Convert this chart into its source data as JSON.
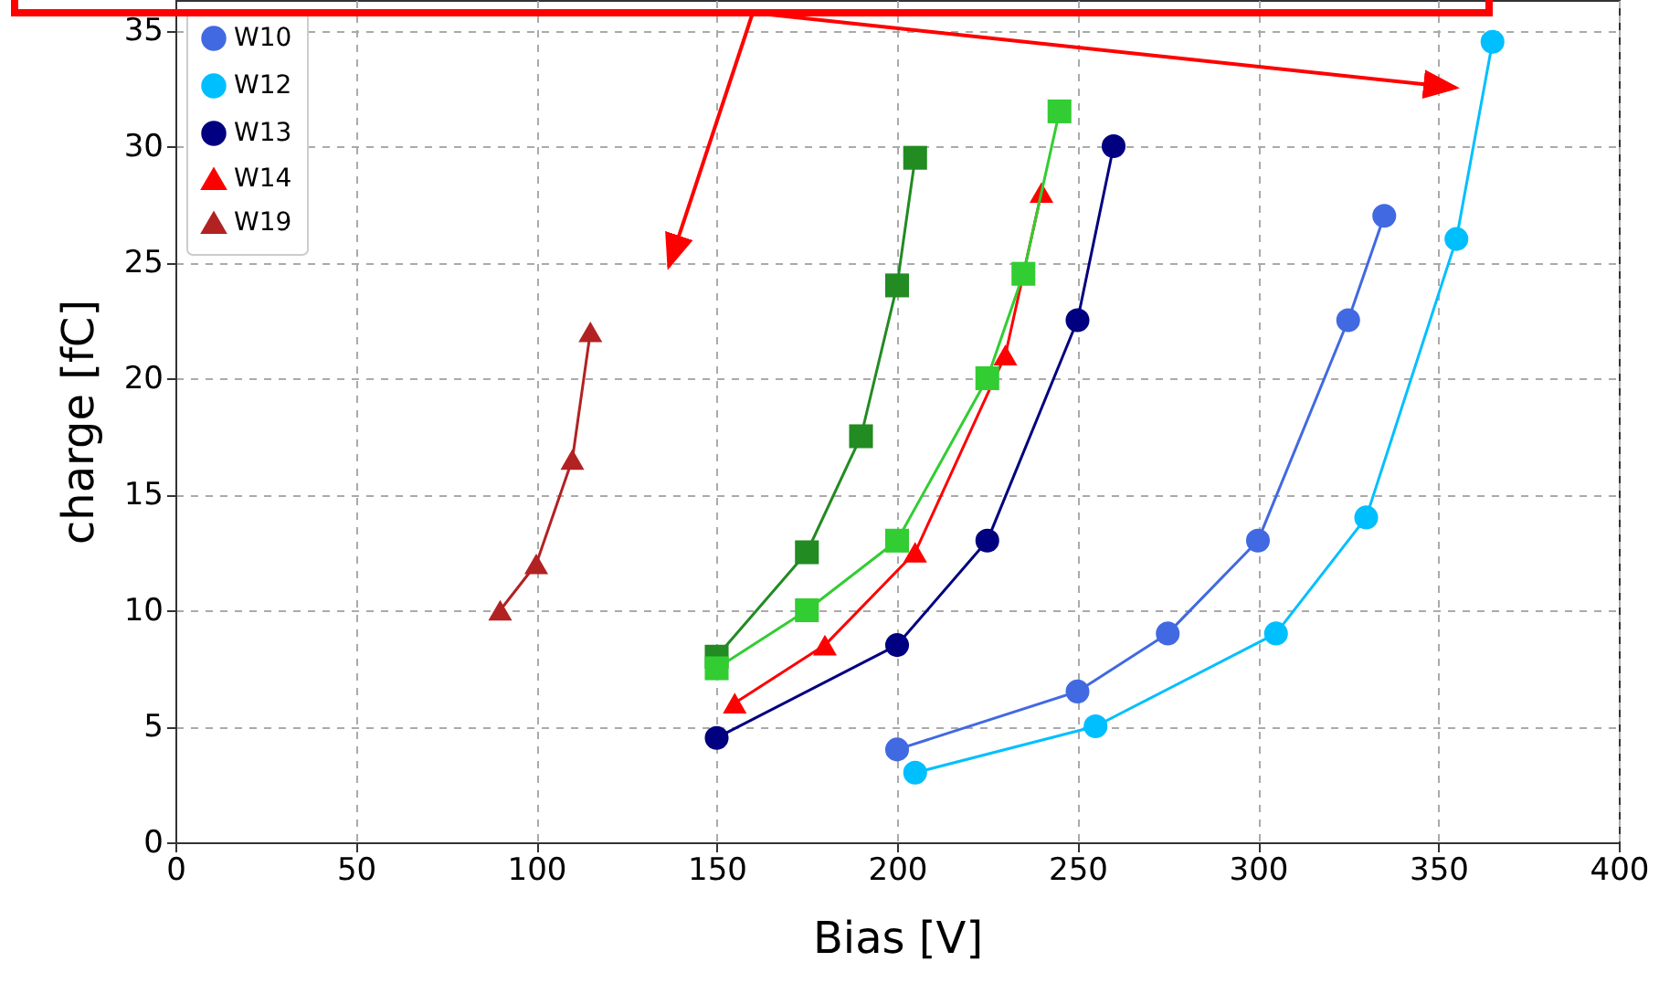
{
  "chart_data": {
    "type": "line",
    "xlabel": "Bias [V]",
    "ylabel": "charge [fC]",
    "xlim": [
      0,
      400
    ],
    "ylim": [
      0,
      36.3
    ],
    "xticks": [
      0,
      50,
      100,
      150,
      200,
      250,
      300,
      350,
      400
    ],
    "yticks": [
      0,
      5,
      10,
      15,
      20,
      25,
      30,
      35
    ],
    "grid": true,
    "legend": "top left",
    "series": [
      {
        "name": "W10",
        "color": "#4169e1",
        "marker": "circle",
        "x": [
          200,
          250,
          275,
          300,
          325,
          335
        ],
        "values": [
          4,
          6.5,
          9,
          13,
          22.5,
          27
        ]
      },
      {
        "name": "W12",
        "color": "#00bfff",
        "marker": "circle",
        "x": [
          205,
          255,
          305,
          330,
          355,
          365
        ],
        "values": [
          3,
          5,
          9,
          14,
          26,
          34.5
        ]
      },
      {
        "name": "W13",
        "color": "#000080",
        "marker": "circle",
        "x": [
          150,
          200,
          225,
          250,
          260
        ],
        "values": [
          4.5,
          8.5,
          13,
          22.5,
          30
        ]
      },
      {
        "name": "W14",
        "color": "#ff0000",
        "marker": "triangle",
        "x": [
          155,
          180,
          205,
          230,
          240
        ],
        "values": [
          6,
          8.5,
          12.5,
          21,
          28
        ]
      },
      {
        "name": "W19",
        "color": "#b22222",
        "marker": "triangle",
        "x": [
          90,
          100,
          110,
          115
        ],
        "values": [
          10,
          12,
          16.5,
          22
        ]
      },
      {
        "color": "#228b22",
        "marker": "square",
        "x": [
          150,
          175,
          190,
          200,
          205
        ],
        "values": [
          8,
          12.5,
          17.5,
          24,
          29.5
        ]
      },
      {
        "color": "#32cd32",
        "marker": "square",
        "x": [
          150,
          175,
          200,
          225,
          235,
          245
        ],
        "values": [
          7.5,
          10,
          13,
          20,
          24.5,
          31.5
        ]
      }
    ]
  }
}
